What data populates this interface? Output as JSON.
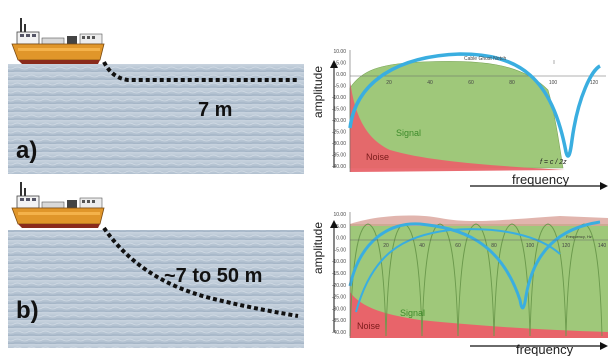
{
  "panel_a": {
    "label": "a)",
    "depth_label": "7 m",
    "chart": {
      "title_annotation": "Cable Ghost Notch",
      "signal_label": "Signal",
      "noise_label": "Noise",
      "formula": "f = c / 2z",
      "ylabel": "amplitude",
      "xlabel": "frequency",
      "y_ticks": [
        "10.00",
        "5.00",
        "0.00",
        "-5.00",
        "-10.00",
        "-15.00",
        "-20.00",
        "-25.00",
        "-30.00",
        "-35.00",
        "-40.00"
      ],
      "x_ticks": [
        "20",
        "40",
        "60",
        "80",
        "100",
        "120"
      ]
    }
  },
  "panel_b": {
    "label": "b)",
    "depth_label": "~7 to 50  m",
    "chart": {
      "signal_label": "Signal",
      "noise_label": "Noise",
      "freq_tiny": "Frequency, Hz",
      "ylabel": "amplitude",
      "xlabel": "frequency",
      "y_ticks": [
        "10.00",
        "5.00",
        "0.00",
        "-5.00",
        "-10.00",
        "-15.00",
        "-20.00",
        "-25.00",
        "-30.00",
        "-35.00",
        "-40.00"
      ],
      "x_ticks": [
        "20",
        "40",
        "60",
        "80",
        "100",
        "120",
        "140"
      ]
    }
  },
  "colors": {
    "sea": "#b8c6d6",
    "signal_fill": "#9fc87a",
    "noise_fill": "#e8646a",
    "ghost_curve": "#3aaee0",
    "ship_hull": "#e0962a"
  }
}
